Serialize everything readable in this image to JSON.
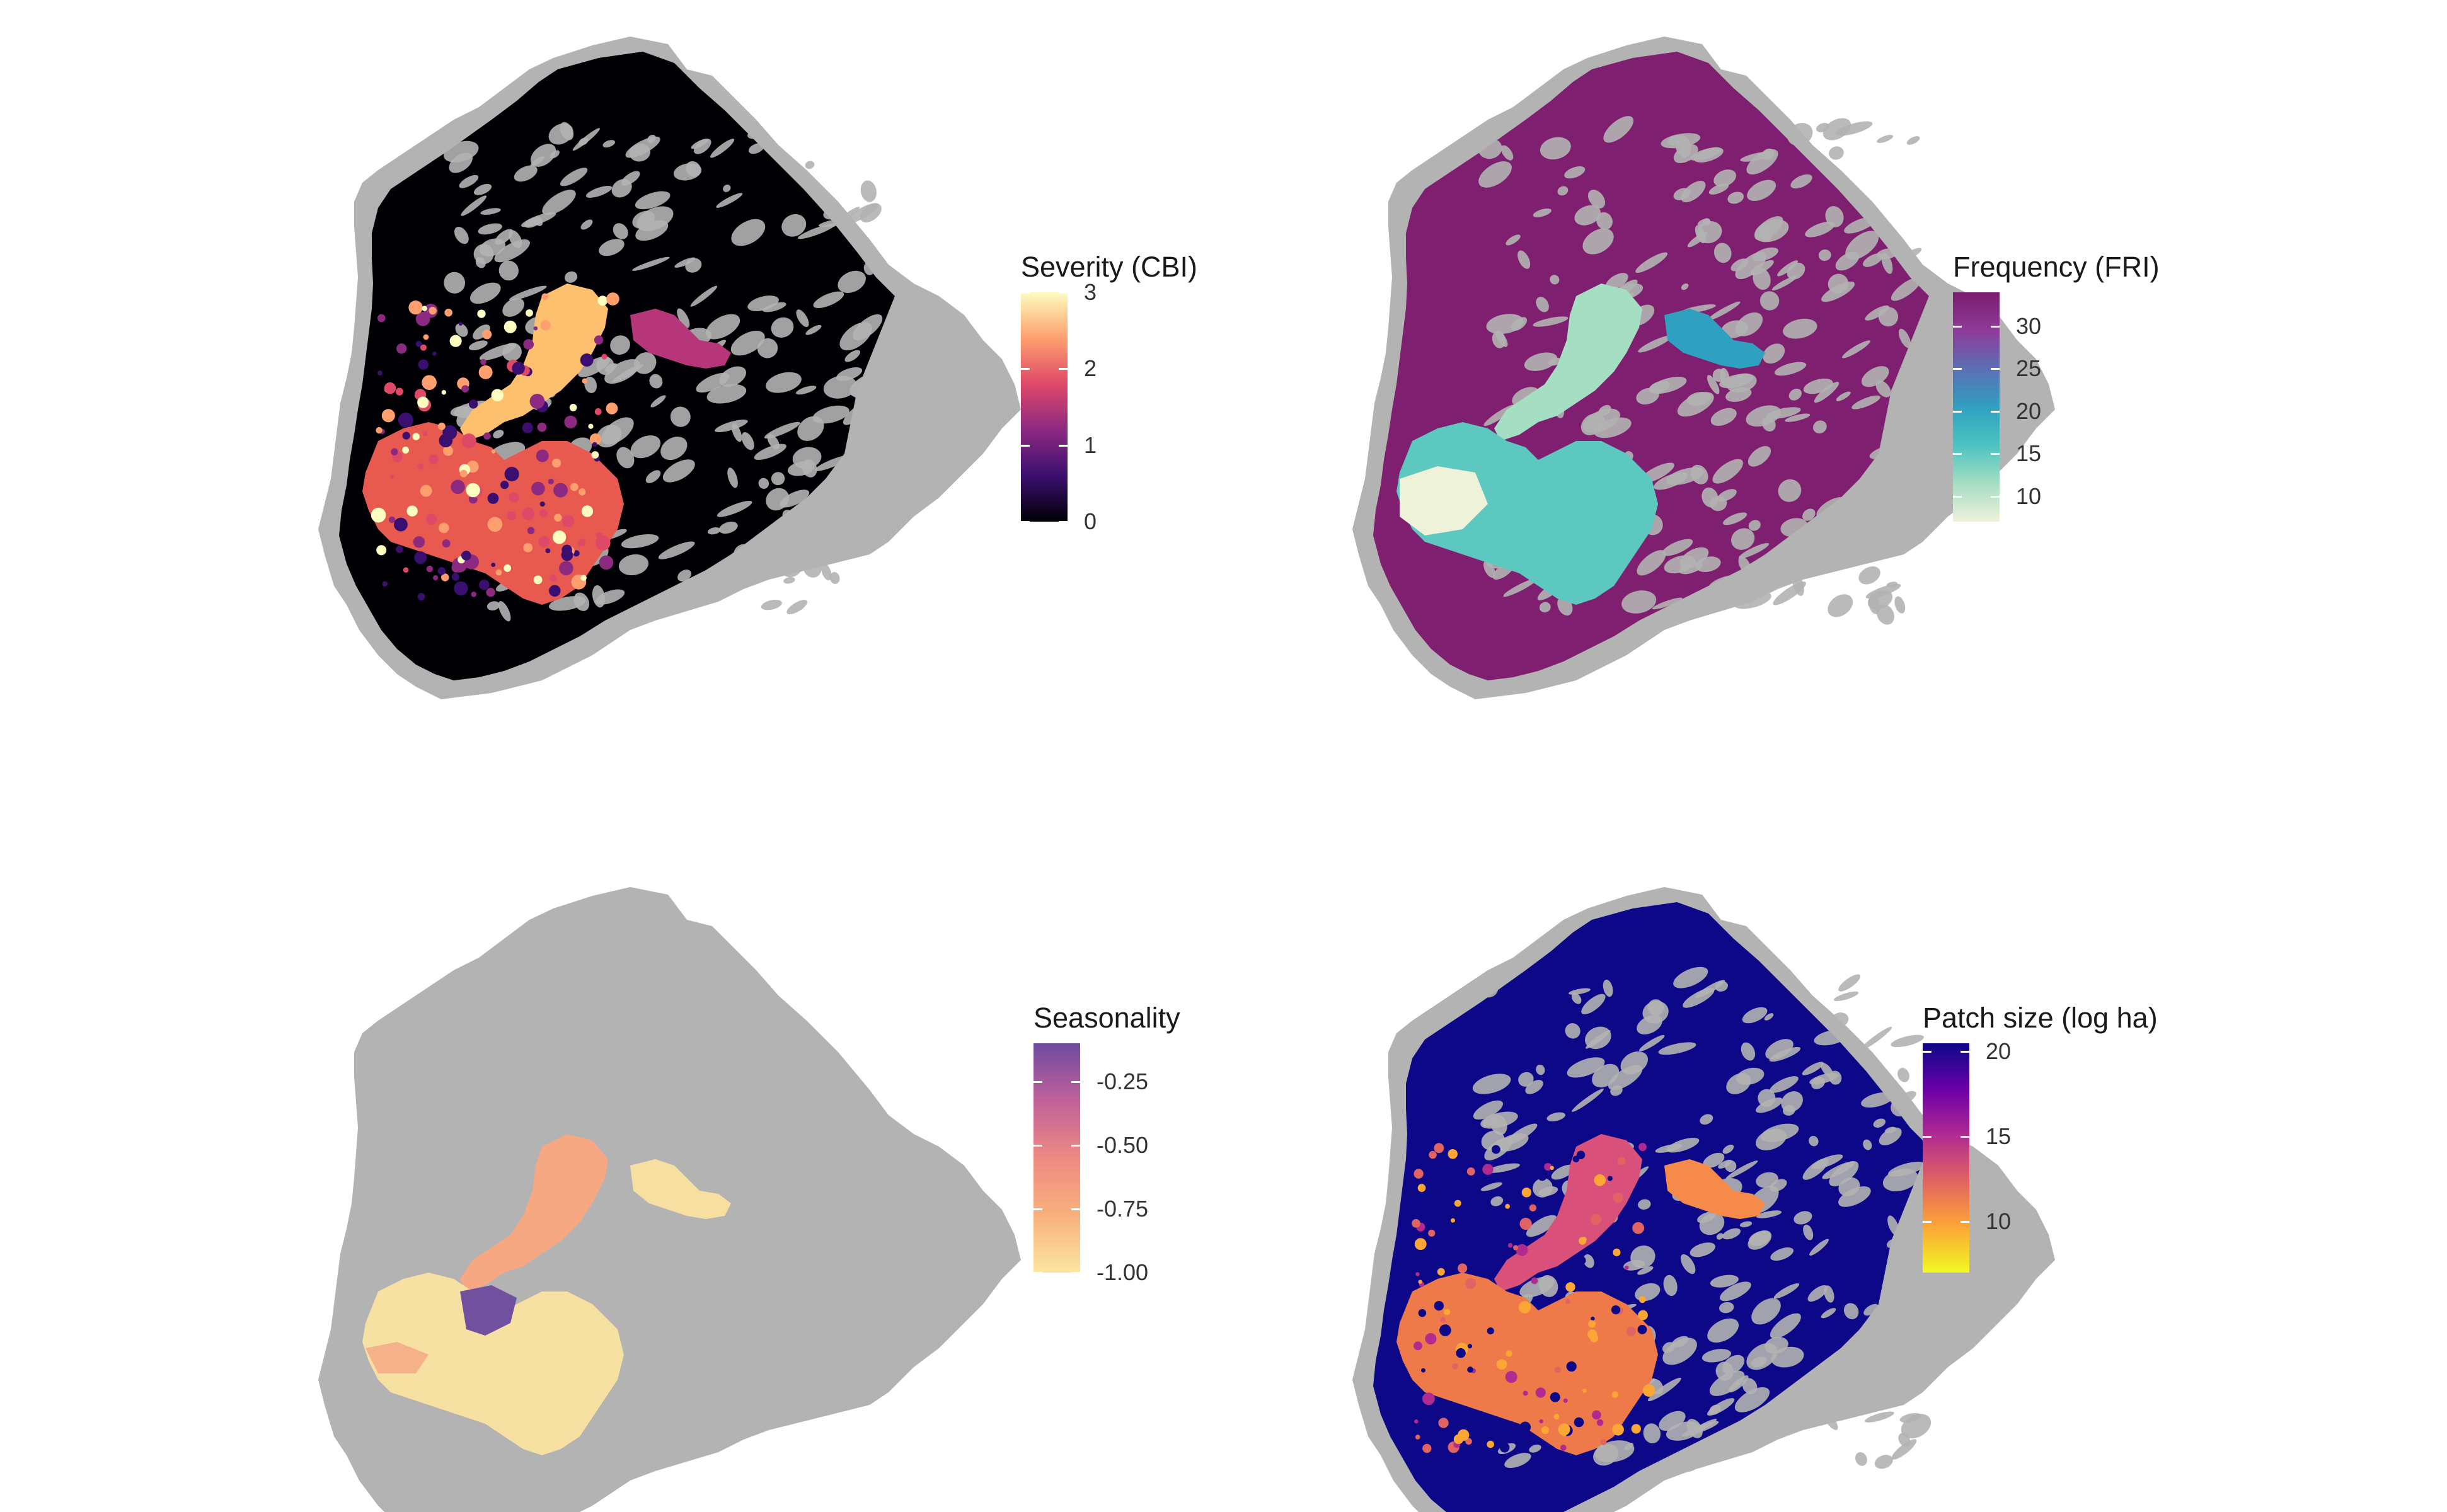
{
  "panels": [
    {
      "id": "severity",
      "legend": {
        "title": "Severity (CBI)",
        "ticks": [
          "3",
          "2",
          "1",
          "0"
        ],
        "tick_values": [
          3,
          2,
          1,
          0
        ],
        "range": [
          0,
          3
        ],
        "gradient": [
          "#000004",
          "#3b0f70",
          "#8c2981",
          "#de4968",
          "#fe9f6d",
          "#fcfdbf"
        ]
      },
      "colors": {
        "background": "#000004",
        "unburned": "#b3b3b3",
        "fire": "#f4a259"
      }
    },
    {
      "id": "frequency",
      "legend": {
        "title": "Frequency (FRI)",
        "ticks": [
          "30",
          "25",
          "20",
          "15",
          "10"
        ],
        "tick_values": [
          30,
          25,
          20,
          15,
          10
        ],
        "range": [
          7,
          34
        ],
        "gradient": [
          "#eef2d9",
          "#a5dec3",
          "#4cc3c1",
          "#2fa0bf",
          "#5b6fb4",
          "#8e3b9a",
          "#7a1d6e"
        ]
      },
      "colors": {
        "background": "#7e1f6f",
        "unburned": "#b3b3b3",
        "fire": "#5cc8c0"
      }
    },
    {
      "id": "seasonality",
      "legend": {
        "title": "Seasonality",
        "ticks": [
          "-0.25",
          "-0.50",
          "-0.75",
          "-1.00"
        ],
        "tick_values": [
          -0.25,
          -0.5,
          -0.75,
          -1.0
        ],
        "range": [
          -1.0,
          -0.1
        ],
        "gradient": [
          "#fbe6a0",
          "#f9b07c",
          "#ee8a82",
          "#c0619a",
          "#6e4b9e"
        ]
      },
      "colors": {
        "background": "#b3b3b3",
        "unburned": "#b3b3b3",
        "fire": "#f4e3a1"
      }
    },
    {
      "id": "patch-size",
      "legend": {
        "title": "Patch size (log ha)",
        "ticks": [
          "20",
          "15",
          "10"
        ],
        "tick_values": [
          20,
          15,
          10
        ],
        "range": [
          7,
          20.5
        ],
        "gradient": [
          "#f0f921",
          "#fca636",
          "#e16462",
          "#b12a90",
          "#6a00a8",
          "#0d0887"
        ]
      },
      "colors": {
        "background": "#0d0887",
        "unburned": "#b3b3b3",
        "fire": "#ee7a4a"
      }
    }
  ]
}
